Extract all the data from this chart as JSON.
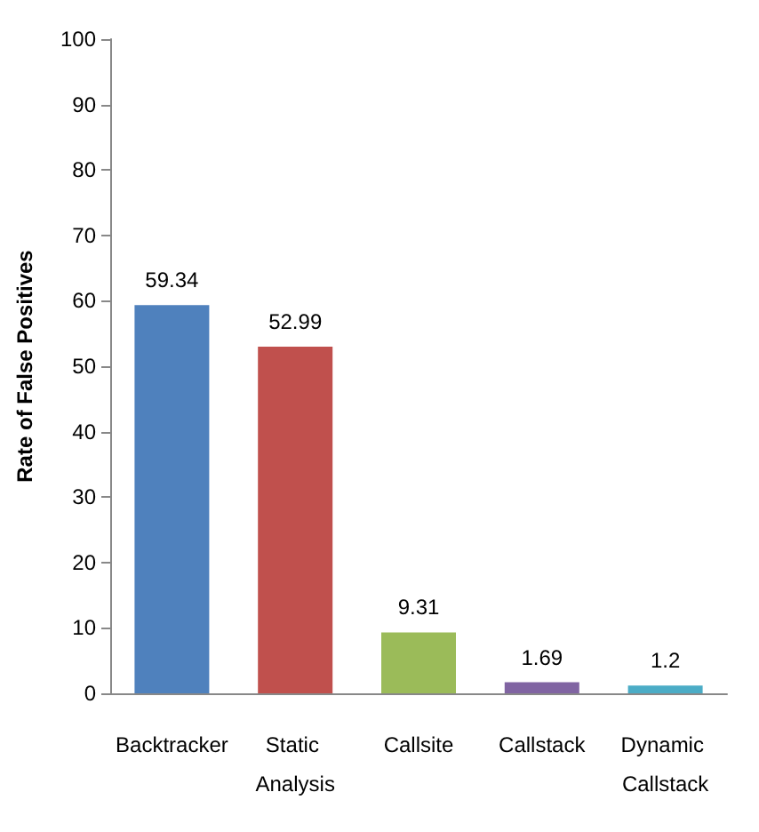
{
  "chart_data": {
    "type": "bar",
    "ylabel": "Rate of False Positives",
    "categories": [
      "Backtracker",
      "Static Analysis",
      "Callsite",
      "Callstack",
      "Dynamic Callstack"
    ],
    "values": [
      59.34,
      52.99,
      9.31,
      1.69,
      1.2
    ],
    "colors": [
      "#4f81bd",
      "#c0504d",
      "#9bbb59",
      "#8064a2",
      "#4bacc6"
    ],
    "ylim": [
      0,
      100
    ],
    "yticks": [
      0,
      10,
      20,
      30,
      40,
      50,
      60,
      70,
      80,
      90,
      100
    ],
    "grid": false,
    "data_labels": true
  }
}
